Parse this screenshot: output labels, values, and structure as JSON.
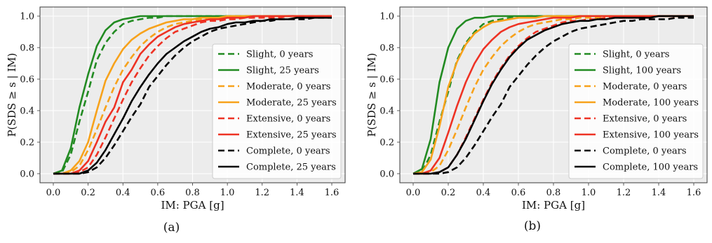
{
  "colors": {
    "Slight": "#228B22",
    "Moderate": "#F7A21B",
    "Extensive": "#EE3224",
    "Complete": "#000000",
    "plot_bg": "#ECECEC",
    "grid": "#FFFFFF"
  },
  "chart_data": [
    {
      "type": "line",
      "panel_label": "(a)",
      "xlabel": "IM: PGA [g]",
      "ylabel": "P(SDS ≥ s | IM)",
      "xlim": [
        0.0,
        1.6
      ],
      "ylim": [
        0.0,
        1.0
      ],
      "xticks": [
        "0.0",
        "0.2",
        "0.4",
        "0.6",
        "0.8",
        "1.0",
        "1.2",
        "1.4",
        "1.6"
      ],
      "yticks": [
        "0.0",
        "0.2",
        "0.4",
        "0.6",
        "0.8",
        "1.0"
      ],
      "grid": true,
      "legend_position": "lower-right",
      "x": [
        0.0,
        0.05,
        0.1,
        0.15,
        0.2,
        0.25,
        0.3,
        0.35,
        0.4,
        0.45,
        0.5,
        0.55,
        0.6,
        0.65,
        0.7,
        0.75,
        0.8,
        0.85,
        0.9,
        0.95,
        1.0,
        1.05,
        1.1,
        1.15,
        1.2,
        1.25,
        1.3,
        1.35,
        1.4,
        1.45,
        1.5,
        1.55,
        1.6
      ],
      "series": [
        {
          "name": "Slight, 0 years",
          "state": "Slight",
          "dashed": true,
          "values": [
            0.0,
            0.01,
            0.12,
            0.33,
            0.52,
            0.72,
            0.83,
            0.9,
            0.95,
            0.97,
            0.98,
            0.99,
            0.99,
            1.0,
            1.0,
            1.0,
            1.0,
            1.0,
            1.0,
            1.0,
            1.0,
            1.0,
            1.0,
            1.0,
            1.0,
            1.0,
            1.0,
            1.0,
            1.0,
            1.0,
            1.0,
            1.0,
            1.0
          ]
        },
        {
          "name": "Slight, 25 years",
          "state": "Slight",
          "dashed": false,
          "values": [
            0.0,
            0.02,
            0.16,
            0.42,
            0.63,
            0.81,
            0.91,
            0.96,
            0.98,
            0.99,
            1.0,
            1.0,
            1.0,
            1.0,
            1.0,
            1.0,
            1.0,
            1.0,
            1.0,
            1.0,
            1.0,
            1.0,
            1.0,
            1.0,
            1.0,
            1.0,
            1.0,
            1.0,
            1.0,
            1.0,
            1.0,
            1.0,
            1.0
          ]
        },
        {
          "name": "Moderate, 0 years",
          "state": "Moderate",
          "dashed": true,
          "values": [
            0.0,
            0.0,
            0.01,
            0.05,
            0.15,
            0.28,
            0.42,
            0.55,
            0.66,
            0.74,
            0.81,
            0.86,
            0.9,
            0.93,
            0.95,
            0.96,
            0.97,
            0.98,
            0.98,
            0.99,
            0.99,
            0.99,
            1.0,
            1.0,
            1.0,
            1.0,
            1.0,
            1.0,
            1.0,
            1.0,
            1.0,
            1.0,
            1.0
          ]
        },
        {
          "name": "Moderate, 25 years",
          "state": "Moderate",
          "dashed": false,
          "values": [
            0.0,
            0.0,
            0.02,
            0.08,
            0.2,
            0.4,
            0.59,
            0.7,
            0.79,
            0.85,
            0.89,
            0.92,
            0.94,
            0.96,
            0.97,
            0.98,
            0.98,
            0.99,
            0.99,
            0.99,
            1.0,
            1.0,
            1.0,
            1.0,
            1.0,
            1.0,
            1.0,
            1.0,
            1.0,
            1.0,
            1.0,
            1.0,
            1.0
          ]
        },
        {
          "name": "Extensive, 0 years",
          "state": "Extensive",
          "dashed": true,
          "values": [
            0.0,
            0.0,
            0.0,
            0.01,
            0.04,
            0.12,
            0.23,
            0.35,
            0.47,
            0.58,
            0.67,
            0.75,
            0.81,
            0.86,
            0.9,
            0.92,
            0.94,
            0.96,
            0.97,
            0.97,
            0.98,
            0.98,
            0.99,
            0.99,
            0.99,
            0.99,
            0.99,
            1.0,
            1.0,
            1.0,
            1.0,
            1.0,
            1.0
          ]
        },
        {
          "name": "Extensive, 25 years",
          "state": "Extensive",
          "dashed": false,
          "values": [
            0.0,
            0.0,
            0.0,
            0.02,
            0.08,
            0.2,
            0.33,
            0.42,
            0.58,
            0.66,
            0.76,
            0.82,
            0.87,
            0.9,
            0.93,
            0.95,
            0.96,
            0.97,
            0.98,
            0.98,
            0.99,
            0.99,
            0.99,
            1.0,
            1.0,
            1.0,
            1.0,
            1.0,
            1.0,
            1.0,
            1.0,
            1.0,
            1.0
          ]
        },
        {
          "name": "Complete, 0 years",
          "state": "Complete",
          "dashed": true,
          "values": [
            0.0,
            0.0,
            0.0,
            0.0,
            0.01,
            0.04,
            0.1,
            0.18,
            0.27,
            0.36,
            0.44,
            0.55,
            0.62,
            0.69,
            0.75,
            0.8,
            0.84,
            0.87,
            0.9,
            0.92,
            0.93,
            0.94,
            0.95,
            0.96,
            0.97,
            0.97,
            0.98,
            0.98,
            0.98,
            0.98,
            0.99,
            0.99,
            0.99
          ]
        },
        {
          "name": "Complete, 25 years",
          "state": "Complete",
          "dashed": false,
          "values": [
            0.0,
            0.0,
            0.0,
            0.0,
            0.02,
            0.07,
            0.15,
            0.25,
            0.35,
            0.46,
            0.55,
            0.63,
            0.7,
            0.76,
            0.8,
            0.84,
            0.87,
            0.9,
            0.92,
            0.93,
            0.95,
            0.96,
            0.96,
            0.97,
            0.97,
            0.98,
            0.98,
            0.98,
            0.99,
            0.99,
            0.99,
            0.99,
            0.99
          ]
        }
      ]
    },
    {
      "type": "line",
      "panel_label": "(b)",
      "xlabel": "IM: PGA [g]",
      "ylabel": "P(SDS ≥ s | IM)",
      "xlim": [
        0.0,
        1.6
      ],
      "ylim": [
        0.0,
        1.0
      ],
      "xticks": [
        "0.0",
        "0.2",
        "0.4",
        "0.6",
        "0.8",
        "1.0",
        "1.2",
        "1.4",
        "1.6"
      ],
      "yticks": [
        "0.0",
        "0.2",
        "0.4",
        "0.6",
        "0.8",
        "1.0"
      ],
      "grid": true,
      "legend_position": "lower-right",
      "x": [
        0.0,
        0.05,
        0.1,
        0.15,
        0.2,
        0.25,
        0.3,
        0.35,
        0.4,
        0.45,
        0.5,
        0.55,
        0.6,
        0.65,
        0.7,
        0.75,
        0.8,
        0.85,
        0.9,
        0.95,
        1.0,
        1.05,
        1.1,
        1.15,
        1.2,
        1.25,
        1.3,
        1.35,
        1.4,
        1.45,
        1.5,
        1.55,
        1.6
      ],
      "series": [
        {
          "name": "Slight, 0 years",
          "state": "Slight",
          "dashed": true,
          "values": [
            0.0,
            0.01,
            0.12,
            0.33,
            0.52,
            0.72,
            0.83,
            0.9,
            0.95,
            0.97,
            0.98,
            0.99,
            0.99,
            1.0,
            1.0,
            1.0,
            1.0,
            1.0,
            1.0,
            1.0,
            1.0,
            1.0,
            1.0,
            1.0,
            1.0,
            1.0,
            1.0,
            1.0,
            1.0,
            1.0,
            1.0,
            1.0,
            1.0
          ]
        },
        {
          "name": "Slight, 100 years",
          "state": "Slight",
          "dashed": false,
          "values": [
            0.0,
            0.03,
            0.22,
            0.58,
            0.8,
            0.92,
            0.97,
            0.99,
            0.99,
            1.0,
            1.0,
            1.0,
            1.0,
            1.0,
            1.0,
            1.0,
            1.0,
            1.0,
            1.0,
            1.0,
            1.0,
            1.0,
            1.0,
            1.0,
            1.0,
            1.0,
            1.0,
            1.0,
            1.0,
            1.0,
            1.0,
            1.0,
            1.0
          ]
        },
        {
          "name": "Moderate, 0 years",
          "state": "Moderate",
          "dashed": true,
          "values": [
            0.0,
            0.0,
            0.01,
            0.05,
            0.15,
            0.28,
            0.42,
            0.55,
            0.66,
            0.74,
            0.81,
            0.86,
            0.9,
            0.93,
            0.95,
            0.96,
            0.97,
            0.98,
            0.98,
            0.99,
            0.99,
            0.99,
            1.0,
            1.0,
            1.0,
            1.0,
            1.0,
            1.0,
            1.0,
            1.0,
            1.0,
            1.0,
            1.0
          ]
        },
        {
          "name": "Moderate, 100 years",
          "state": "Moderate",
          "dashed": false,
          "values": [
            0.0,
            0.01,
            0.09,
            0.3,
            0.55,
            0.71,
            0.82,
            0.89,
            0.93,
            0.96,
            0.97,
            0.98,
            0.99,
            0.99,
            0.99,
            1.0,
            1.0,
            1.0,
            1.0,
            1.0,
            1.0,
            1.0,
            1.0,
            1.0,
            1.0,
            1.0,
            1.0,
            1.0,
            1.0,
            1.0,
            1.0,
            1.0,
            1.0
          ]
        },
        {
          "name": "Extensive, 0 years",
          "state": "Extensive",
          "dashed": true,
          "values": [
            0.0,
            0.0,
            0.0,
            0.01,
            0.04,
            0.12,
            0.23,
            0.35,
            0.47,
            0.58,
            0.67,
            0.75,
            0.81,
            0.86,
            0.9,
            0.92,
            0.94,
            0.96,
            0.97,
            0.97,
            0.98,
            0.98,
            0.99,
            0.99,
            0.99,
            0.99,
            0.99,
            1.0,
            1.0,
            1.0,
            1.0,
            1.0,
            1.0
          ]
        },
        {
          "name": "Extensive, 100 years",
          "state": "Extensive",
          "dashed": false,
          "values": [
            0.0,
            0.0,
            0.02,
            0.1,
            0.26,
            0.43,
            0.58,
            0.7,
            0.79,
            0.85,
            0.9,
            0.93,
            0.95,
            0.96,
            0.97,
            0.98,
            0.99,
            0.99,
            0.99,
            1.0,
            1.0,
            1.0,
            1.0,
            1.0,
            1.0,
            1.0,
            1.0,
            1.0,
            1.0,
            1.0,
            1.0,
            1.0,
            1.0
          ]
        },
        {
          "name": "Complete, 0 years",
          "state": "Complete",
          "dashed": true,
          "values": [
            0.0,
            0.0,
            0.0,
            0.0,
            0.01,
            0.04,
            0.1,
            0.18,
            0.27,
            0.36,
            0.44,
            0.55,
            0.62,
            0.69,
            0.75,
            0.8,
            0.84,
            0.87,
            0.9,
            0.92,
            0.93,
            0.94,
            0.95,
            0.96,
            0.97,
            0.97,
            0.98,
            0.98,
            0.98,
            0.98,
            0.99,
            0.99,
            0.99
          ]
        },
        {
          "name": "Complete, 100 years",
          "state": "Complete",
          "dashed": false,
          "values": [
            0.0,
            0.0,
            0.0,
            0.01,
            0.04,
            0.12,
            0.22,
            0.34,
            0.46,
            0.57,
            0.66,
            0.74,
            0.8,
            0.85,
            0.88,
            0.91,
            0.93,
            0.95,
            0.96,
            0.97,
            0.97,
            0.98,
            0.98,
            0.99,
            0.99,
            0.99,
            0.99,
            0.99,
            1.0,
            1.0,
            1.0,
            1.0,
            1.0
          ]
        }
      ]
    }
  ]
}
